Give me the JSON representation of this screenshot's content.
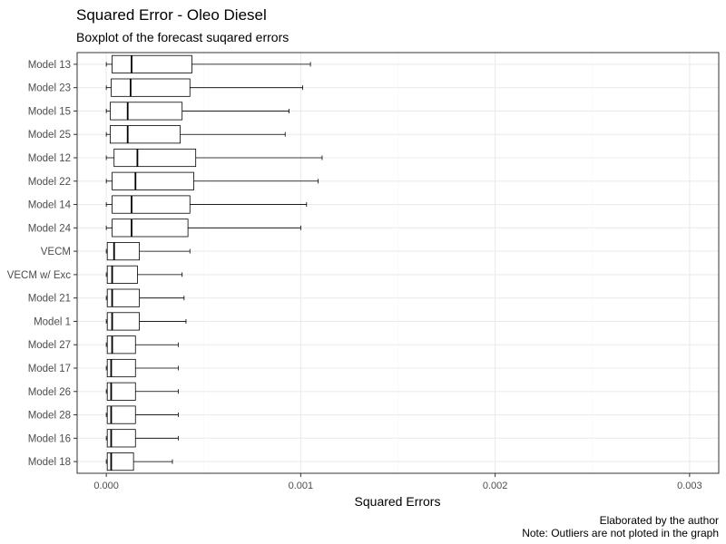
{
  "chart_data": {
    "type": "boxplot",
    "orientation": "horizontal",
    "title": "Squared Error - Oleo Diesel",
    "subtitle": "Boxplot of the forecast suqared errors",
    "xlabel": "Squared Errors",
    "ylabel": "",
    "xlim": [
      -0.00015,
      0.00315
    ],
    "x_ticks": [
      0.0,
      0.001,
      0.002,
      0.003
    ],
    "x_tick_labels": [
      "0.000",
      "0.001",
      "0.002",
      "0.003"
    ],
    "grid": true,
    "captions": [
      "Elaborated by the author",
      "Note: Outliers are not ploted in the graph"
    ],
    "categories": [
      "Model 13",
      "Model 23",
      "Model 15",
      "Model 25",
      "Model 12",
      "Model 22",
      "Model 14",
      "Model 24",
      "VECM",
      "VECM w/ Exc",
      "Model 21",
      "Model 1",
      "Model 27",
      "Model 17",
      "Model 26",
      "Model 28",
      "Model 16",
      "Model 18"
    ],
    "boxes": [
      {
        "min": 0.0,
        "q1": 3e-05,
        "median": 0.00013,
        "q3": 0.00044,
        "max": 0.00105
      },
      {
        "min": 0.0,
        "q1": 2.5e-05,
        "median": 0.000125,
        "q3": 0.00043,
        "max": 0.00101
      },
      {
        "min": 0.0,
        "q1": 2e-05,
        "median": 0.00011,
        "q3": 0.00039,
        "max": 0.00094
      },
      {
        "min": 0.0,
        "q1": 2e-05,
        "median": 0.00011,
        "q3": 0.00038,
        "max": 0.00092
      },
      {
        "min": 0.0,
        "q1": 4e-05,
        "median": 0.00016,
        "q3": 0.00046,
        "max": 0.00111
      },
      {
        "min": 0.0,
        "q1": 3e-05,
        "median": 0.00015,
        "q3": 0.00045,
        "max": 0.00109
      },
      {
        "min": 0.0,
        "q1": 3e-05,
        "median": 0.00013,
        "q3": 0.00043,
        "max": 0.00103
      },
      {
        "min": 0.0,
        "q1": 3e-05,
        "median": 0.00013,
        "q3": 0.00042,
        "max": 0.001
      },
      {
        "min": 0.0,
        "q1": 5e-06,
        "median": 4e-05,
        "q3": 0.00017,
        "max": 0.00043
      },
      {
        "min": 0.0,
        "q1": 5e-06,
        "median": 3e-05,
        "q3": 0.00016,
        "max": 0.00039
      },
      {
        "min": 0.0,
        "q1": 5e-06,
        "median": 3e-05,
        "q3": 0.00017,
        "max": 0.0004
      },
      {
        "min": 0.0,
        "q1": 5e-06,
        "median": 3e-05,
        "q3": 0.00017,
        "max": 0.00041
      },
      {
        "min": 0.0,
        "q1": 5e-06,
        "median": 3e-05,
        "q3": 0.00015,
        "max": 0.00037
      },
      {
        "min": 0.0,
        "q1": 5e-06,
        "median": 2.5e-05,
        "q3": 0.00015,
        "max": 0.00037
      },
      {
        "min": 0.0,
        "q1": 5e-06,
        "median": 2.5e-05,
        "q3": 0.00015,
        "max": 0.00037
      },
      {
        "min": 0.0,
        "q1": 5e-06,
        "median": 2.5e-05,
        "q3": 0.00015,
        "max": 0.00037
      },
      {
        "min": 0.0,
        "q1": 5e-06,
        "median": 2.5e-05,
        "q3": 0.00015,
        "max": 0.00037
      },
      {
        "min": 0.0,
        "q1": 5e-06,
        "median": 2.5e-05,
        "q3": 0.00014,
        "max": 0.00034
      }
    ]
  },
  "colors": {
    "panel_border": "#333333",
    "grid_major": "#ebebeb",
    "grid_minor": "#f5f5f5",
    "box_fill": "#ffffff",
    "box_stroke": "#000000",
    "tick": "#333333"
  }
}
